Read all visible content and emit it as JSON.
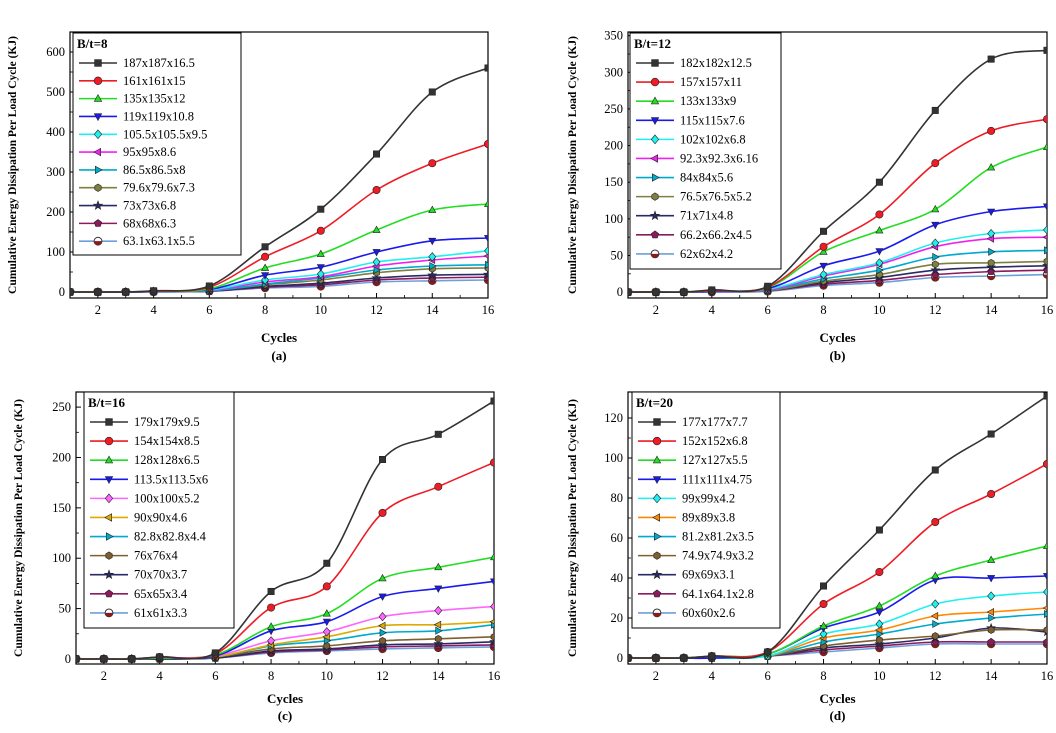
{
  "chart_data": [
    {
      "type": "line",
      "title": "B/t=8",
      "caption": "(a)",
      "xlabel": "Cycles",
      "ylabel": "Cumulative Energy Dissipation Per Load Cycle (KJ)",
      "xlim": [
        1,
        16
      ],
      "ylim": [
        -15,
        650
      ],
      "xticks": [
        2,
        4,
        6,
        8,
        10,
        12,
        14,
        16
      ],
      "yticks": [
        0,
        100,
        200,
        300,
        400,
        500,
        600
      ],
      "x": [
        1,
        2,
        3,
        4,
        6,
        8,
        10,
        12,
        14,
        16
      ],
      "series": [
        {
          "name": "187x187x16.5",
          "color": "#333333",
          "marker": "square",
          "values": [
            0,
            0,
            0,
            3,
            15,
            113,
            207,
            345,
            500,
            560
          ]
        },
        {
          "name": "161x161x15",
          "color": "#ee1c25",
          "marker": "circle",
          "values": [
            0,
            0,
            0,
            2,
            12,
            88,
            153,
            255,
            322,
            370
          ]
        },
        {
          "name": "135x135x12",
          "color": "#22dd22",
          "marker": "triangle-up",
          "values": [
            0,
            0,
            0,
            2,
            8,
            60,
            95,
            155,
            205,
            220
          ]
        },
        {
          "name": "119x119x10.8",
          "color": "#1a1aee",
          "marker": "triangle-down",
          "values": [
            0,
            0,
            0,
            1,
            6,
            42,
            62,
            100,
            128,
            135
          ]
        },
        {
          "name": "105.5x105.5x9.5",
          "color": "#1ef0f0",
          "marker": "diamond",
          "values": [
            0,
            0,
            0,
            1,
            5,
            30,
            45,
            75,
            88,
            103
          ]
        },
        {
          "name": "95x95x8.6",
          "color": "#ee22ee",
          "marker": "triangle-left",
          "values": [
            0,
            0,
            0,
            1,
            4,
            25,
            38,
            65,
            80,
            90
          ]
        },
        {
          "name": "86.5x86.5x8",
          "color": "#00aacc",
          "marker": "triangle-right",
          "values": [
            0,
            0,
            0,
            1,
            3,
            20,
            35,
            55,
            65,
            68
          ]
        },
        {
          "name": "79.6x79.6x7.3",
          "color": "#7f7f3f",
          "marker": "hexagon",
          "values": [
            0,
            0,
            0,
            1,
            3,
            18,
            30,
            48,
            58,
            60
          ]
        },
        {
          "name": "73x73x6.8",
          "color": "#2a2a66",
          "marker": "star",
          "values": [
            0,
            0,
            0,
            1,
            2,
            14,
            22,
            35,
            42,
            44
          ]
        },
        {
          "name": "68x68x6.3",
          "color": "#8b1a5e",
          "marker": "pentagon",
          "values": [
            0,
            0,
            0,
            1,
            2,
            12,
            18,
            30,
            35,
            37
          ]
        },
        {
          "name": "63.1x63.1x5.5",
          "color": "#6f9fd8",
          "marker": "circle-half",
          "values": [
            0,
            0,
            0,
            0,
            2,
            10,
            14,
            25,
            28,
            30
          ]
        }
      ]
    },
    {
      "type": "line",
      "title": "B/t=12",
      "caption": "(b)",
      "xlabel": "Cycles",
      "ylabel": "Cumulative Energy Dissipation Per Load Cycle (KJ)",
      "xlim": [
        1,
        16
      ],
      "ylim": [
        -8,
        355
      ],
      "xticks": [
        2,
        4,
        6,
        8,
        10,
        12,
        14,
        16
      ],
      "yticks": [
        0,
        50,
        100,
        150,
        200,
        250,
        300,
        350
      ],
      "x": [
        1,
        2,
        3,
        4,
        6,
        8,
        10,
        12,
        14,
        16
      ],
      "series": [
        {
          "name": "182x182x12.5",
          "color": "#333333",
          "marker": "square",
          "values": [
            0,
            0,
            0,
            3,
            8,
            83,
            150,
            248,
            318,
            330
          ]
        },
        {
          "name": "157x157x11",
          "color": "#ee1c25",
          "marker": "circle",
          "values": [
            0,
            0,
            0,
            2,
            7,
            62,
            106,
            176,
            220,
            236
          ]
        },
        {
          "name": "133x133x9",
          "color": "#22dd22",
          "marker": "triangle-up",
          "values": [
            0,
            0,
            0,
            2,
            6,
            55,
            84,
            113,
            170,
            198
          ]
        },
        {
          "name": "115x115x7.6",
          "color": "#1a1aee",
          "marker": "triangle-down",
          "values": [
            0,
            0,
            0,
            1,
            5,
            36,
            56,
            92,
            110,
            117
          ]
        },
        {
          "name": "102x102x6.8",
          "color": "#1ef0f0",
          "marker": "diamond",
          "values": [
            0,
            0,
            0,
            1,
            4,
            24,
            40,
            67,
            80,
            85
          ]
        },
        {
          "name": "92.3x92.3x6.16",
          "color": "#ee22ee",
          "marker": "triangle-left",
          "values": [
            0,
            0,
            0,
            1,
            3,
            22,
            38,
            62,
            73,
            75
          ]
        },
        {
          "name": "84x84x5.6",
          "color": "#00aacc",
          "marker": "triangle-right",
          "values": [
            0,
            0,
            0,
            1,
            3,
            18,
            30,
            48,
            55,
            57
          ]
        },
        {
          "name": "76.5x76.5x5.2",
          "color": "#7f7f3f",
          "marker": "hexagon",
          "values": [
            0,
            0,
            0,
            1,
            2,
            15,
            24,
            38,
            40,
            42
          ]
        },
        {
          "name": "71x71x4.8",
          "color": "#2a2a66",
          "marker": "star",
          "values": [
            0,
            0,
            0,
            1,
            2,
            13,
            20,
            30,
            34,
            36
          ]
        },
        {
          "name": "66.2x66.2x4.5",
          "color": "#8b1a5e",
          "marker": "pentagon",
          "values": [
            0,
            0,
            0,
            1,
            2,
            11,
            16,
            24,
            28,
            30
          ]
        },
        {
          "name": "62x62x4.2",
          "color": "#6f9fd8",
          "marker": "circle-half",
          "values": [
            0,
            0,
            0,
            0,
            1,
            9,
            13,
            20,
            22,
            24
          ]
        }
      ]
    },
    {
      "type": "line",
      "title": "B/t=16",
      "caption": "(c)",
      "xlabel": "Cycles",
      "ylabel": "Cumulative Energy Dissipation Per Load Cycle (KJ)",
      "xlim": [
        1,
        16
      ],
      "ylim": [
        -5,
        265
      ],
      "xticks": [
        2,
        4,
        6,
        8,
        10,
        12,
        14,
        16
      ],
      "yticks": [
        0,
        50,
        100,
        150,
        200,
        250
      ],
      "x": [
        1,
        2,
        3,
        4,
        6,
        8,
        10,
        12,
        14,
        16
      ],
      "series": [
        {
          "name": "179x179x9.5",
          "color": "#333333",
          "marker": "square",
          "values": [
            0,
            0,
            0,
            2,
            6,
            67,
            95,
            198,
            223,
            256
          ]
        },
        {
          "name": "154x154x8.5",
          "color": "#ee1c25",
          "marker": "circle",
          "values": [
            0,
            0,
            0,
            2,
            5,
            51,
            72,
            145,
            171,
            195
          ]
        },
        {
          "name": "128x128x6.5",
          "color": "#22dd22",
          "marker": "triangle-up",
          "values": [
            0,
            0,
            0,
            1,
            4,
            32,
            45,
            80,
            91,
            101
          ]
        },
        {
          "name": "113.5x113.5x6",
          "color": "#1a1aee",
          "marker": "triangle-down",
          "values": [
            0,
            0,
            0,
            1,
            3,
            28,
            37,
            62,
            70,
            77
          ]
        },
        {
          "name": "100x100x5.2",
          "color": "#ff66ff",
          "marker": "diamond",
          "values": [
            0,
            0,
            0,
            1,
            3,
            18,
            27,
            42,
            48,
            52
          ]
        },
        {
          "name": "90x90x4.6",
          "color": "#ddaa00",
          "marker": "triangle-left",
          "values": [
            0,
            0,
            0,
            1,
            2,
            14,
            22,
            33,
            34,
            37
          ]
        },
        {
          "name": "82.8x82.8x4.4",
          "color": "#00aacc",
          "marker": "triangle-right",
          "values": [
            0,
            0,
            0,
            1,
            2,
            13,
            18,
            26,
            28,
            34
          ]
        },
        {
          "name": "76x76x4",
          "color": "#7f5f2f",
          "marker": "hexagon",
          "values": [
            0,
            0,
            0,
            1,
            2,
            10,
            13,
            18,
            20,
            22
          ]
        },
        {
          "name": "70x70x3.7",
          "color": "#2a2a66",
          "marker": "star",
          "values": [
            0,
            0,
            0,
            0,
            1,
            8,
            10,
            14,
            15,
            17
          ]
        },
        {
          "name": "65x65x3.4",
          "color": "#8b1a5e",
          "marker": "pentagon",
          "values": [
            0,
            0,
            0,
            0,
            1,
            7,
            9,
            12,
            13,
            14
          ]
        },
        {
          "name": "61x61x3.3",
          "color": "#6f9fd8",
          "marker": "circle-half",
          "values": [
            0,
            0,
            0,
            0,
            1,
            6,
            8,
            10,
            11,
            12
          ]
        }
      ]
    },
    {
      "type": "line",
      "title": "B/t=20",
      "caption": "(d)",
      "xlabel": "Cycles",
      "ylabel": "Cumulative Energy Dissipation Per Load Cycle (KJ)",
      "xlim": [
        1,
        16
      ],
      "ylim": [
        -3,
        133
      ],
      "xticks": [
        2,
        4,
        6,
        8,
        10,
        12,
        14,
        16
      ],
      "yticks": [
        0,
        20,
        40,
        60,
        80,
        100,
        120
      ],
      "x": [
        1,
        2,
        3,
        4,
        6,
        8,
        10,
        12,
        14,
        16
      ],
      "series": [
        {
          "name": "177x177x7.7",
          "color": "#333333",
          "marker": "square",
          "values": [
            0,
            0,
            0,
            1,
            3,
            36,
            64,
            94,
            112,
            131
          ]
        },
        {
          "name": "152x152x6.8",
          "color": "#ee1c25",
          "marker": "circle",
          "values": [
            0,
            0,
            0,
            1,
            3,
            27,
            43,
            68,
            82,
            97
          ]
        },
        {
          "name": "127x127x5.5",
          "color": "#22dd22",
          "marker": "triangle-up",
          "values": [
            0,
            0,
            0,
            1,
            2,
            16,
            26,
            41,
            49,
            56
          ]
        },
        {
          "name": "111x111x4.75",
          "color": "#1a1aee",
          "marker": "triangle-down",
          "values": [
            0,
            0,
            0,
            0,
            2,
            15,
            23,
            39,
            40,
            41
          ]
        },
        {
          "name": "99x99x4.2",
          "color": "#1ef0f0",
          "marker": "diamond",
          "values": [
            0,
            0,
            0,
            0,
            1,
            12,
            17,
            27,
            31,
            33
          ]
        },
        {
          "name": "89x89x3.8",
          "color": "#ff8800",
          "marker": "triangle-left",
          "values": [
            0,
            0,
            0,
            0,
            1,
            10,
            14,
            21,
            23,
            25
          ]
        },
        {
          "name": "81.2x81.2x3.5",
          "color": "#00aacc",
          "marker": "triangle-right",
          "values": [
            0,
            0,
            0,
            0,
            1,
            8,
            12,
            17,
            20,
            22
          ]
        },
        {
          "name": "74.9x74.9x3.2",
          "color": "#7f5f2f",
          "marker": "hexagon",
          "values": [
            0,
            0,
            0,
            0,
            1,
            6,
            9,
            11,
            14,
            14
          ]
        },
        {
          "name": "69x69x3.1",
          "color": "#2a2a66",
          "marker": "star",
          "values": [
            0,
            0,
            0,
            0,
            1,
            5,
            7,
            10,
            15,
            13
          ]
        },
        {
          "name": "64.1x64.1x2.8",
          "color": "#8b1a5e",
          "marker": "pentagon",
          "values": [
            0,
            0,
            0,
            0,
            1,
            4,
            6,
            8,
            8,
            8
          ]
        },
        {
          "name": "60x60x2.6",
          "color": "#6f9fd8",
          "marker": "circle-half",
          "values": [
            0,
            0,
            0,
            0,
            1,
            3,
            5,
            7,
            7,
            7
          ]
        }
      ]
    }
  ]
}
